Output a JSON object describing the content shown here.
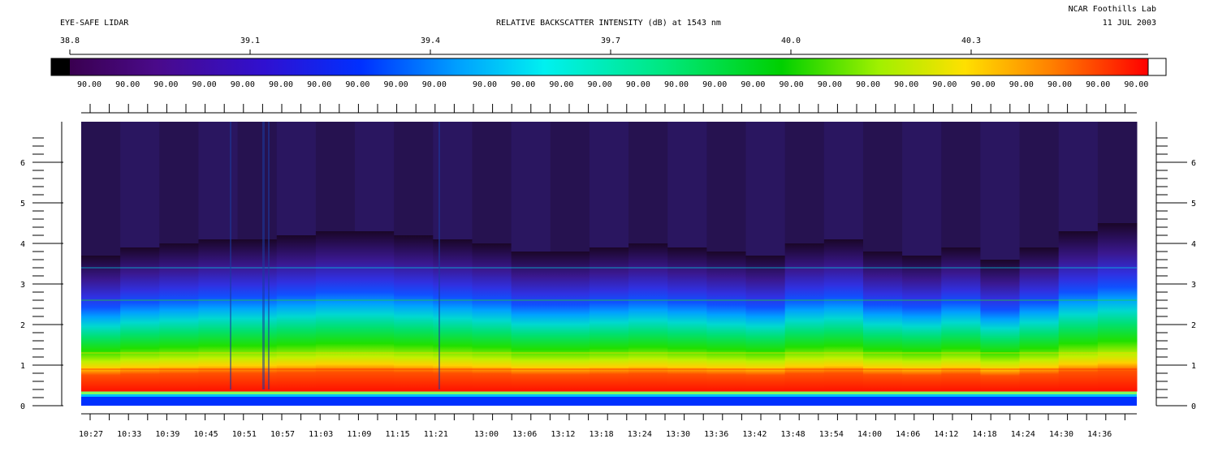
{
  "header": {
    "left_title": "EYE-SAFE LIDAR",
    "center_title": "RELATIVE BACKSCATTER INTENSITY (dB) at 1543 nm",
    "org": "NCAR Foothills Lab",
    "date": "11 JUL 2003"
  },
  "colorbar": {
    "scale_ticks": [
      "38.8",
      "39.1",
      "39.4",
      "39.7",
      "40.0",
      "40.3"
    ],
    "bin_labels": [
      "90.00",
      "90.00",
      "90.00",
      "90.00",
      "90.00",
      "90.00",
      "90.00",
      "90.00",
      "90.00",
      "90.00",
      "90.00",
      "90.00",
      "90.00",
      "90.00",
      "90.00",
      "90.00",
      "90.00",
      "90.00",
      "90.00",
      "90.00",
      "90.00",
      "90.00",
      "90.00",
      "90.00",
      "90.00",
      "90.00",
      "90.00",
      "90.00"
    ]
  },
  "chart_data": {
    "type": "heatmap",
    "title": "RELATIVE BACKSCATTER INTENSITY (dB) at 1543 nm",
    "xlabel": "",
    "ylabel": "",
    "x_tick_labels": [
      "10:27",
      "10:33",
      "10:39",
      "10:45",
      "10:51",
      "10:57",
      "11:03",
      "11:09",
      "11:15",
      "11:21",
      "13:00",
      "13:06",
      "13:12",
      "13:18",
      "13:24",
      "13:30",
      "13:36",
      "13:42",
      "13:48",
      "13:54",
      "14:00",
      "14:06",
      "14:12",
      "14:18",
      "14:24",
      "14:30",
      "14:36"
    ],
    "y_tick_labels": [
      "0",
      "1",
      "2",
      "3",
      "4",
      "5",
      "6"
    ],
    "ylim": [
      0,
      7
    ],
    "mixed_layer_top": [
      3.7,
      3.9,
      4.0,
      4.1,
      4.1,
      4.2,
      4.3,
      4.3,
      4.2,
      4.1,
      4.0,
      3.8,
      3.8,
      3.9,
      4.0,
      3.9,
      3.8,
      3.7,
      4.0,
      4.1,
      3.8,
      3.7,
      3.9,
      3.6,
      3.9,
      4.3,
      4.5
    ],
    "layer_heights": [
      {
        "band": "red",
        "top": 0.9
      },
      {
        "band": "yellow",
        "top": 1.3
      },
      {
        "band": "green",
        "top": 2.6
      },
      {
        "band": "cyan",
        "top": 3.4
      }
    ]
  }
}
